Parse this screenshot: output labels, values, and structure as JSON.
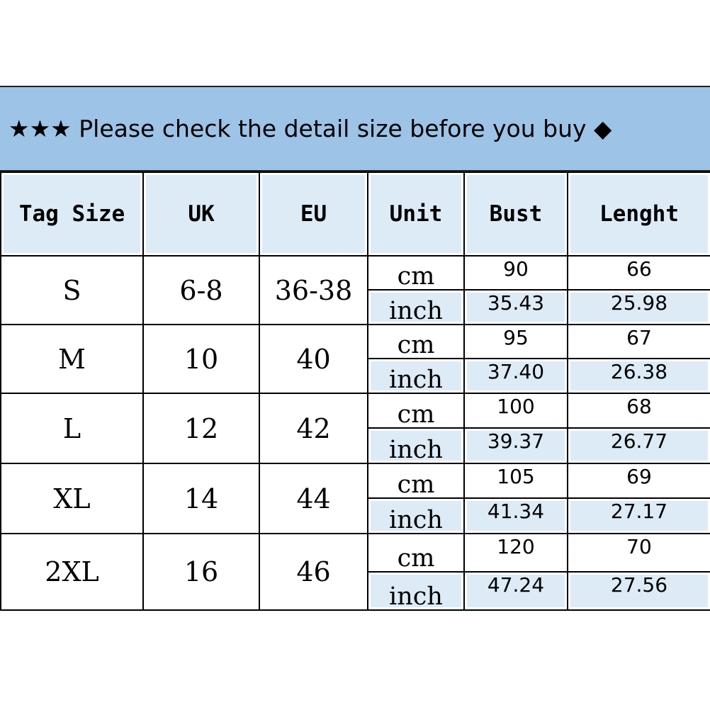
{
  "banner": {
    "prefix": "★★★",
    "text": "Please check the detail size before you buy",
    "suffix": "◆"
  },
  "columns": [
    "Tag Size",
    "UK",
    "EU",
    "Unit",
    "Bust",
    "Lenght"
  ],
  "rows": [
    {
      "tag": "S",
      "uk": "6-8",
      "eu": "36-38",
      "cm": {
        "unit": "cm",
        "bust": "90",
        "length": "66"
      },
      "inch": {
        "unit": "inch",
        "bust": "35.43",
        "length": "25.98"
      }
    },
    {
      "tag": "M",
      "uk": "10",
      "eu": "40",
      "cm": {
        "unit": "cm",
        "bust": "95",
        "length": "67"
      },
      "inch": {
        "unit": "inch",
        "bust": "37.40",
        "length": "26.38"
      }
    },
    {
      "tag": "L",
      "uk": "12",
      "eu": "42",
      "cm": {
        "unit": "cm",
        "bust": "100",
        "length": "68"
      },
      "inch": {
        "unit": "inch",
        "bust": "39.37",
        "length": "26.77"
      }
    },
    {
      "tag": "XL",
      "uk": "14",
      "eu": "44",
      "cm": {
        "unit": "cm",
        "bust": "105",
        "length": "69"
      },
      "inch": {
        "unit": "inch",
        "bust": "41.34",
        "length": "27.17"
      }
    },
    {
      "tag": "2XL",
      "uk": "16",
      "eu": "46",
      "cm": {
        "unit": "cm",
        "bust": "120",
        "length": "70"
      },
      "inch": {
        "unit": "inch",
        "bust": "47.24",
        "length": "27.56"
      }
    }
  ],
  "colors": {
    "banner": "#9dc3e6",
    "header": "#ddebf7",
    "inch_row": "#ddebf7"
  }
}
